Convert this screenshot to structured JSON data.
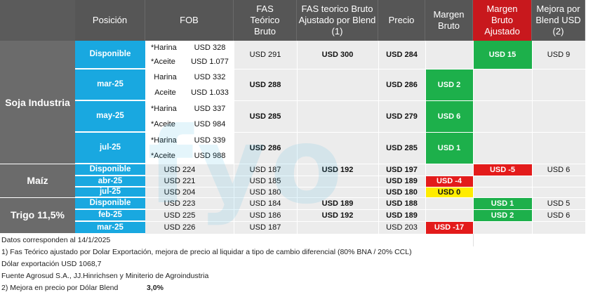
{
  "headers": {
    "posicion": "Posición",
    "fob": "FOB",
    "fas_teorico": "FAS Teórico Bruto",
    "fas_ajustado": "FAS teorico Bruto Ajustado por Blend (1)",
    "precio": "Precio",
    "margen_bruto": "Margen Bruto",
    "margen_ajustado": "Margen Bruto Ajustado",
    "mejora": "Mejora por Blend USD (2)"
  },
  "groups": {
    "soja": "Soja Industria",
    "maiz": "Maíz",
    "trigo": "Trigo 11,5%"
  },
  "soja_rows": [
    {
      "pos": "Disponible",
      "fob_a_label": "*Harina",
      "fob_a": "USD 328",
      "fob_b_label": "*Aceite",
      "fob_b": "USD 1.077",
      "fas": "USD 291",
      "fas_adj": "USD 300",
      "precio": "USD 284",
      "margen": "",
      "margen_adj": "USD 15",
      "mejora": "USD 9"
    },
    {
      "pos": "mar-25",
      "fob_a_label": "Harina",
      "fob_a": "USD 332",
      "fob_b_label": "Aceite",
      "fob_b": "USD 1.033",
      "fas": "USD 288",
      "fas_adj": "",
      "precio": "USD 286",
      "margen": "USD 2",
      "margen_adj": "",
      "mejora": ""
    },
    {
      "pos": "may-25",
      "fob_a_label": "*Harina",
      "fob_a": "USD 337",
      "fob_b_label": "*Aceite",
      "fob_b": "USD 984",
      "fas": "USD 285",
      "fas_adj": "",
      "precio": "USD 279",
      "margen": "USD 6",
      "margen_adj": "",
      "mejora": ""
    },
    {
      "pos": "jul-25",
      "fob_a_label": "*Harina",
      "fob_a": "USD 339",
      "fob_b_label": "*Aceite",
      "fob_b": "USD 988",
      "fas": "USD 286",
      "fas_adj": "",
      "precio": "USD 285",
      "margen": "USD 1",
      "margen_adj": "",
      "mejora": ""
    }
  ],
  "maiz_rows": [
    {
      "pos": "Disponible",
      "fob": "USD 224",
      "fas": "USD 187",
      "fas_adj": "USD 192",
      "precio": "USD 197",
      "margen": "",
      "margen_adj": "USD -5",
      "mejora": "USD 6"
    },
    {
      "pos": "abr-25",
      "fob": "USD 221",
      "fas": "USD 185",
      "fas_adj": "",
      "precio": "USD 189",
      "margen": "USD -4",
      "margen_adj": "",
      "mejora": ""
    },
    {
      "pos": "jul-25",
      "fob": "USD 204",
      "fas": "USD 180",
      "fas_adj": "",
      "precio": "USD 180",
      "margen": "USD 0",
      "margen_adj": "",
      "mejora": ""
    }
  ],
  "trigo_rows": [
    {
      "pos": "Disponible",
      "fob": "USD 223",
      "fas": "USD 184",
      "fas_adj": "USD 189",
      "precio": "USD 188",
      "margen": "",
      "margen_adj": "USD 1",
      "mejora": "USD 5"
    },
    {
      "pos": "feb-25",
      "fob": "USD 225",
      "fas": "USD 186",
      "fas_adj": "USD 192",
      "precio": "USD 189",
      "margen": "",
      "margen_adj": "USD 2",
      "mejora": "USD 6"
    },
    {
      "pos": "mar-25",
      "fob": "USD 226",
      "fas": "USD 187",
      "fas_adj": "",
      "precio": "USD 203",
      "margen": "USD -17",
      "margen_adj": "",
      "mejora": ""
    }
  ],
  "notes": {
    "n1": "Datos corresponden al 14/1/2025",
    "n2": "1) Fas Teórico ajustado por Dolar Exportación, mejora de precio al liquidar a tipo de cambio diferencial (80% BNA / 20% CCL)",
    "n3": "Dólar exportación USD 1068,7",
    "n4": "Fuente Agrosud S.A., JJ.Hinrichsen y Miniterio de Agroindustria",
    "n5": "2) Mejora en precio por Dólar Blend",
    "n5_value": "3,0%"
  },
  "watermark": "fyo",
  "colors": {
    "header": "#565656",
    "header_red": "#c8181d",
    "position": "#19a8e0",
    "positive": "#1db04b",
    "negative": "#e31b1b",
    "neutral": "#ffec00"
  }
}
